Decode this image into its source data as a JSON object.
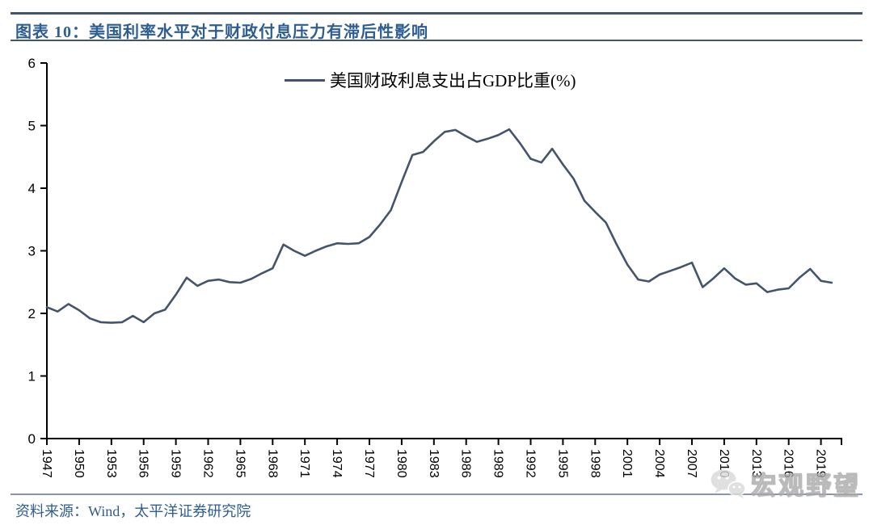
{
  "header": {
    "title": "图表 10：美国利率水平对于财政付息压力有滞后性影响"
  },
  "legend": {
    "series_label": "美国财政利息支出占GDP比重(%)"
  },
  "footer": {
    "source": "资料来源：Wind，太平洋证券研究院"
  },
  "watermark": {
    "label": "宏观野望",
    "icon": "wechat-chat-bubbles"
  },
  "colors": {
    "series_line": "#44546A",
    "heading_text": "#2E5E8F",
    "axis": "#000000",
    "top_rule": "#44546A",
    "title_rule": "#44546A",
    "bottom_rule": "#8496B0",
    "watermark_gray": "#BFBFBF"
  },
  "chart_data": {
    "type": "line",
    "title": "",
    "xlabel": "",
    "ylabel": "",
    "ylim": [
      0,
      6
    ],
    "yticks": [
      0,
      1,
      2,
      3,
      4,
      5,
      6
    ],
    "xticks": [
      1947,
      1950,
      1953,
      1956,
      1959,
      1962,
      1965,
      1968,
      1971,
      1974,
      1977,
      1980,
      1983,
      1986,
      1989,
      1992,
      1995,
      1998,
      2001,
      2004,
      2007,
      2010,
      2013,
      2016,
      2019
    ],
    "grid": false,
    "legend_position": "top-center",
    "series": [
      {
        "name": "美国财政利息支出占GDP比重(%)",
        "x": [
          1947,
          1948,
          1949,
          1950,
          1951,
          1952,
          1953,
          1954,
          1955,
          1956,
          1957,
          1958,
          1959,
          1960,
          1961,
          1962,
          1963,
          1964,
          1965,
          1966,
          1967,
          1968,
          1969,
          1970,
          1971,
          1972,
          1973,
          1974,
          1975,
          1976,
          1977,
          1978,
          1979,
          1980,
          1981,
          1982,
          1983,
          1984,
          1985,
          1986,
          1987,
          1988,
          1989,
          1990,
          1991,
          1992,
          1993,
          1994,
          1995,
          1996,
          1997,
          1998,
          1999,
          2000,
          2001,
          2002,
          2003,
          2004,
          2005,
          2006,
          2007,
          2008,
          2009,
          2010,
          2011,
          2012,
          2013,
          2014,
          2015,
          2016,
          2017,
          2018,
          2019,
          2020
        ],
        "values": [
          2.1,
          2.03,
          2.15,
          2.05,
          1.92,
          1.86,
          1.85,
          1.86,
          1.96,
          1.86,
          2.0,
          2.06,
          2.3,
          2.57,
          2.44,
          2.52,
          2.54,
          2.5,
          2.49,
          2.55,
          2.64,
          2.72,
          3.1,
          3.0,
          2.92,
          3.0,
          3.07,
          3.12,
          3.11,
          3.12,
          3.22,
          3.42,
          3.65,
          4.1,
          4.53,
          4.58,
          4.75,
          4.9,
          4.93,
          4.83,
          4.74,
          4.79,
          4.85,
          4.94,
          4.72,
          4.47,
          4.41,
          4.63,
          4.38,
          4.15,
          3.8,
          3.62,
          3.45,
          3.1,
          2.78,
          2.54,
          2.51,
          2.62,
          2.68,
          2.74,
          2.81,
          2.42,
          2.56,
          2.72,
          2.56,
          2.46,
          2.48,
          2.34,
          2.38,
          2.4,
          2.57,
          2.71,
          2.52,
          2.49
        ]
      }
    ]
  }
}
